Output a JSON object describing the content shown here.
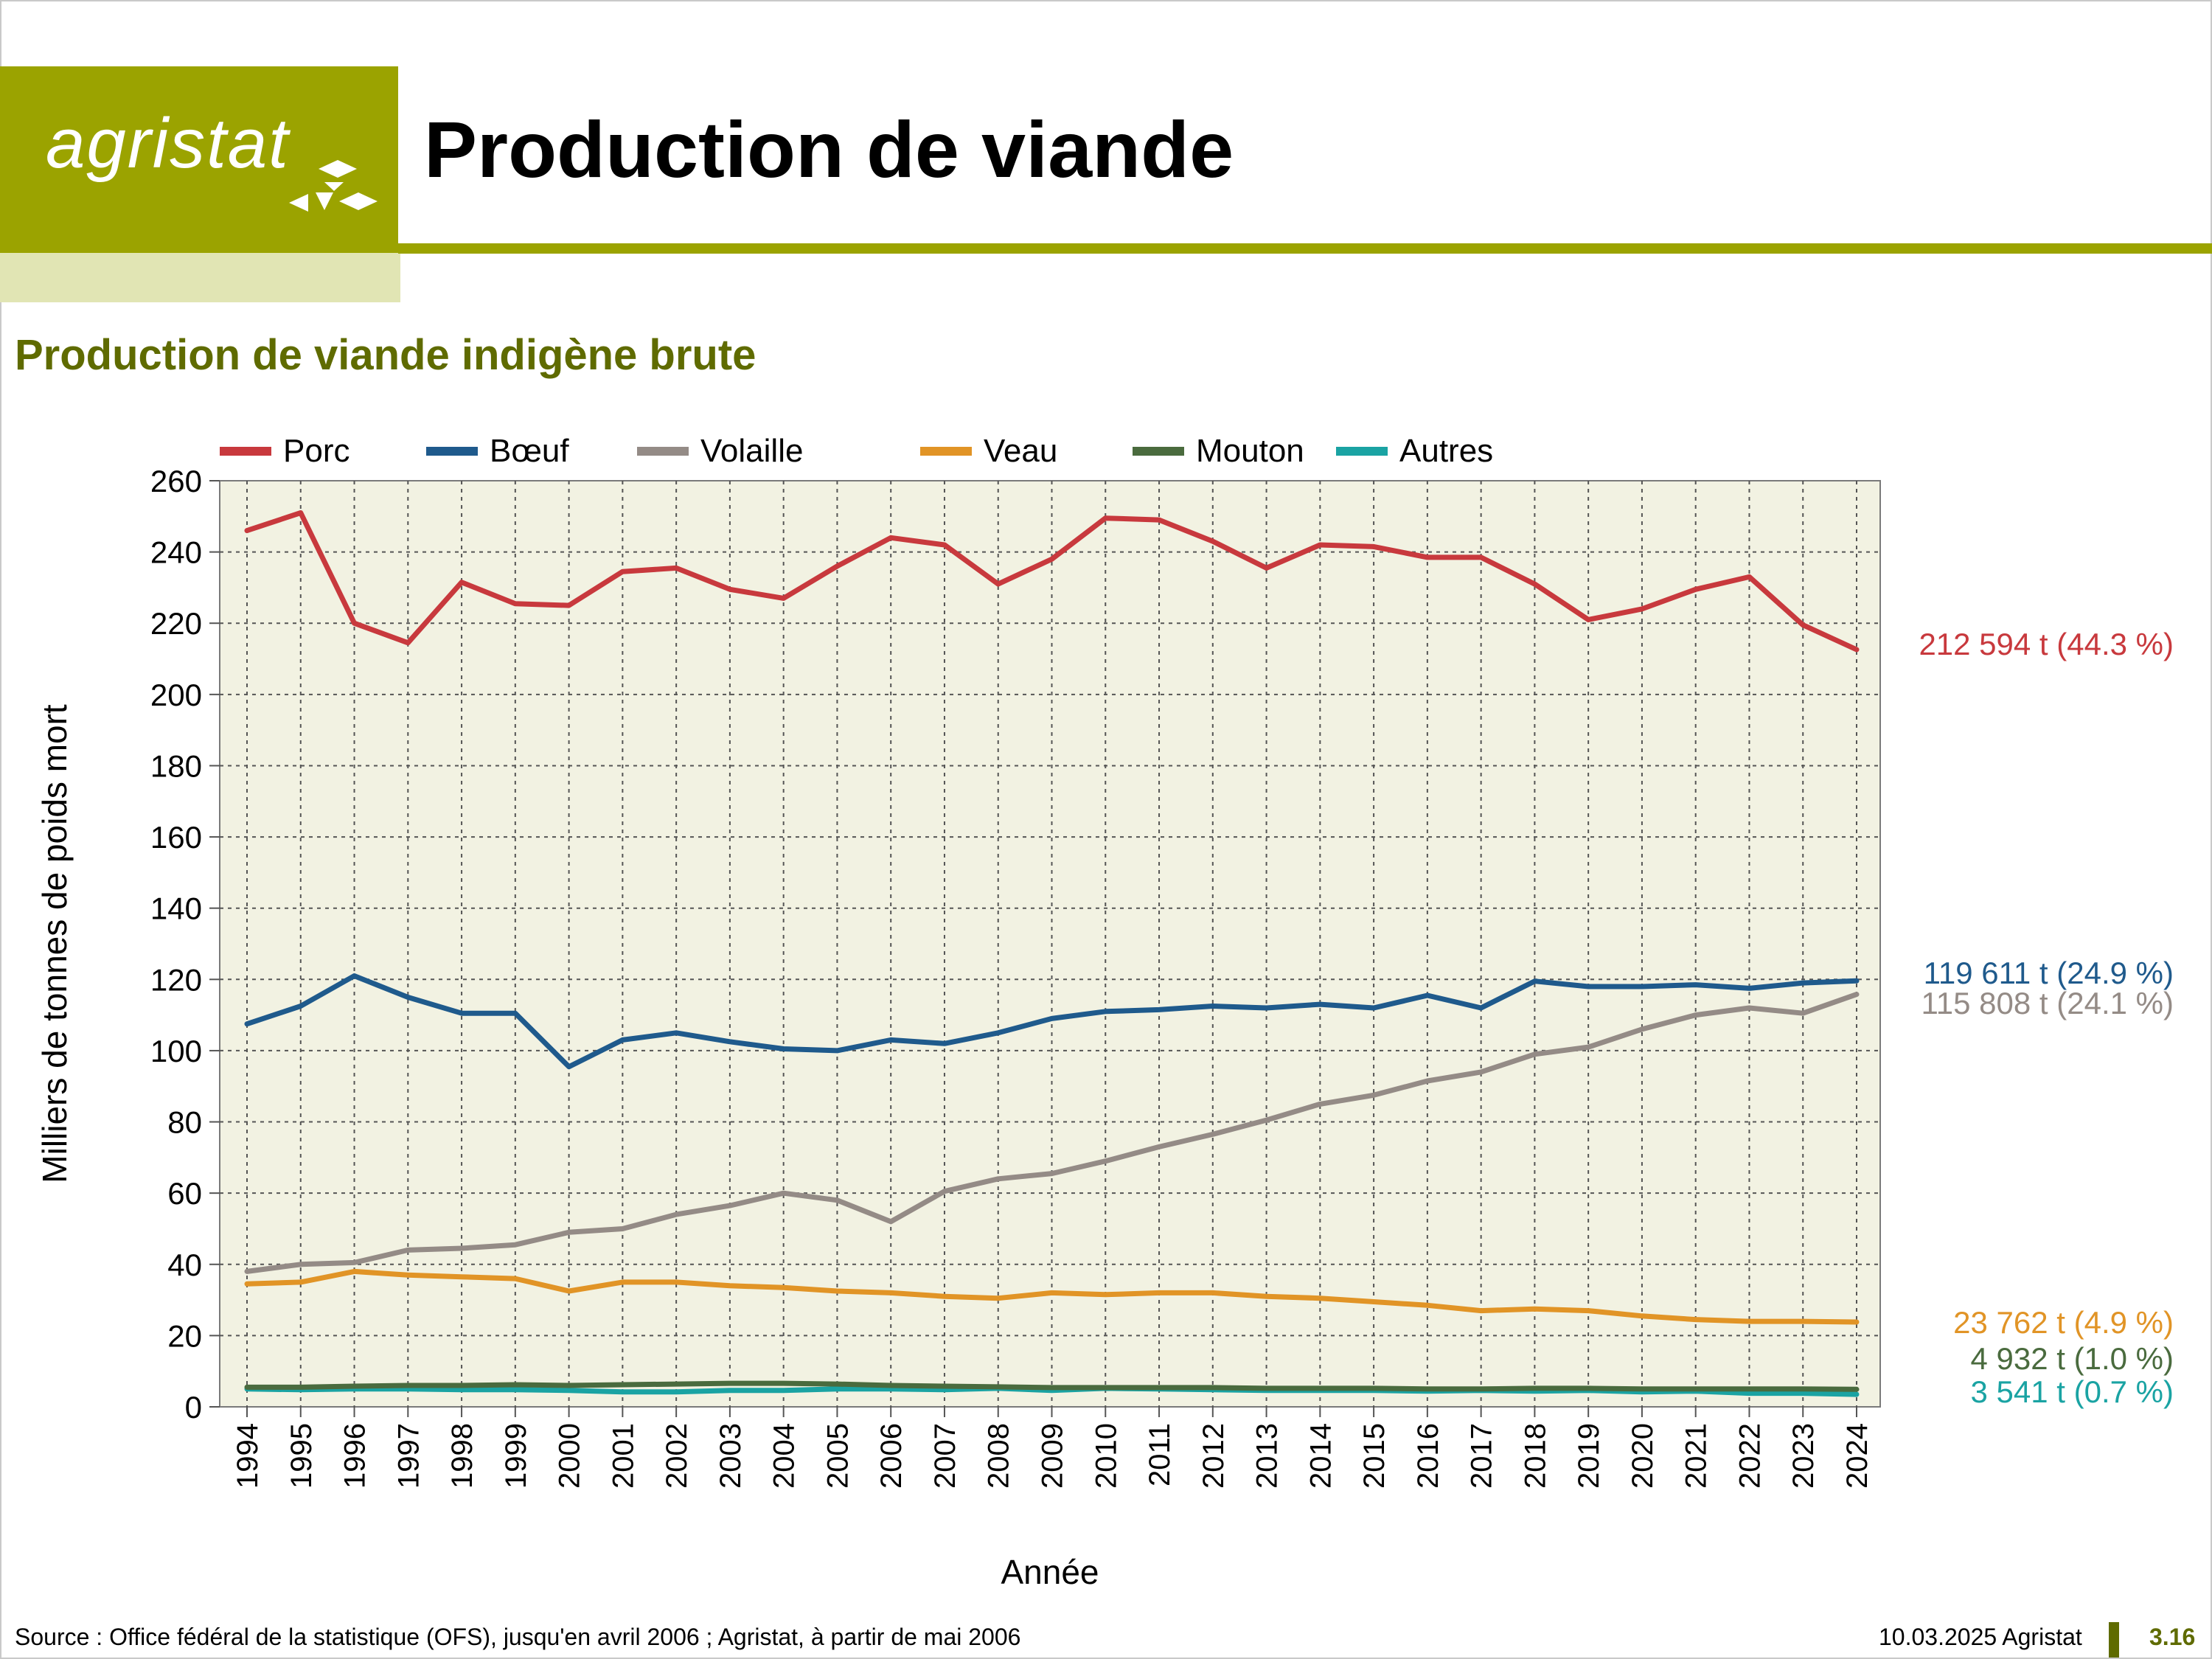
{
  "header": {
    "logo_text": "agristat",
    "title": "Production de viande",
    "brand_color": "#9ba300"
  },
  "subtitle": "Production de viande indigène brute",
  "chart_data": {
    "type": "line",
    "title": "",
    "xlabel": "Année",
    "ylabel": "Milliers de tonnes de poids mort",
    "ylim": [
      0,
      260
    ],
    "yticks": [
      0,
      20,
      40,
      60,
      80,
      100,
      120,
      140,
      160,
      180,
      200,
      220,
      240,
      260
    ],
    "grid": true,
    "legend_position": "top",
    "background": "#f2f2e2",
    "x": [
      "1994",
      "1995",
      "1996",
      "1997",
      "1998",
      "1999",
      "2000",
      "2001",
      "2002",
      "2003",
      "2004",
      "2005",
      "2006",
      "2007",
      "2008",
      "2009",
      "2010",
      "2011",
      "2012",
      "2013",
      "2014",
      "2015",
      "2016",
      "2017",
      "2018",
      "2019",
      "2020",
      "2021",
      "2022",
      "2023",
      "2024"
    ],
    "series": [
      {
        "name": "Porc",
        "color": "#c8393d",
        "end_label": "212 594 t (44.3 %)",
        "values": [
          246,
          251,
          220,
          214.5,
          231.5,
          225.5,
          225,
          234.5,
          235.5,
          229.5,
          227,
          236,
          244,
          242,
          231,
          238,
          249.5,
          249,
          243,
          235.5,
          242,
          241.5,
          238.5,
          238.5,
          231,
          221,
          224,
          229.5,
          233,
          219.5,
          212.6
        ]
      },
      {
        "name": "Bœuf",
        "color": "#1f5a8c",
        "end_label": "119 611 t (24.9 %)",
        "values": [
          107.5,
          112.5,
          121,
          115,
          110.5,
          110.5,
          95.5,
          103,
          105,
          102.5,
          100.5,
          100,
          103,
          102,
          105,
          109,
          111,
          111.5,
          112.5,
          112,
          113,
          112,
          115.5,
          112,
          119.5,
          118,
          118,
          118.5,
          117.5,
          119,
          119.6
        ]
      },
      {
        "name": "Volaille",
        "color": "#948b86",
        "end_label": "115 808 t (24.1 %)",
        "values": [
          38,
          40,
          40.5,
          44,
          44.5,
          45.5,
          49,
          50,
          54,
          56.5,
          60,
          58,
          52,
          60.5,
          64,
          65.5,
          69,
          73,
          76.5,
          80.5,
          85,
          87.5,
          91.5,
          94,
          99,
          101,
          106,
          110,
          112,
          110.5,
          115.8
        ]
      },
      {
        "name": "Veau",
        "color": "#e19426",
        "end_label": "23 762 t (4.9 %)",
        "values": [
          34.5,
          35,
          38,
          37,
          36.5,
          36,
          32.5,
          35,
          35,
          34,
          33.5,
          32.5,
          32,
          31,
          30.5,
          32,
          31.5,
          32,
          32,
          31,
          30.5,
          29.5,
          28.5,
          27,
          27.5,
          27,
          25.5,
          24.5,
          24,
          24,
          23.8
        ]
      },
      {
        "name": "Mouton",
        "color": "#4a6b3e",
        "end_label": "4 932 t (1.0 %)",
        "values": [
          5.5,
          5.5,
          5.8,
          6,
          6,
          6.2,
          6,
          6.2,
          6.4,
          6.6,
          6.6,
          6.4,
          6,
          5.8,
          5.6,
          5.4,
          5.4,
          5.4,
          5.4,
          5.2,
          5.2,
          5.2,
          5,
          5,
          5.2,
          5.2,
          5,
          5,
          5,
          5,
          4.9
        ]
      },
      {
        "name": "Autres",
        "color": "#1aa3a3",
        "end_label": "3 541 t (0.7 %)",
        "values": [
          5,
          4.8,
          5,
          5,
          4.8,
          4.8,
          4.6,
          4.2,
          4.2,
          4.6,
          4.6,
          5,
          5,
          4.8,
          5.2,
          4.6,
          5.2,
          5,
          4.8,
          4.6,
          4.6,
          4.6,
          4.4,
          4.6,
          4.4,
          4.6,
          4.2,
          4.4,
          3.8,
          3.8,
          3.5
        ]
      }
    ]
  },
  "footer": {
    "source": "Source : Office fédéral de la statistique (OFS), jusqu'en avril 2006 ; Agristat, à partir de mai 2006",
    "date": "10.03.2025 Agristat",
    "page": "3.16"
  }
}
